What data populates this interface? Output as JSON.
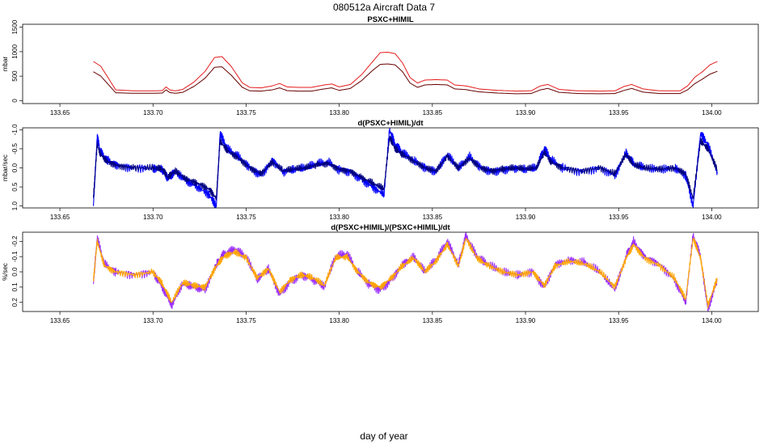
{
  "figure": {
    "title": "080512a   Aircraft Data 7",
    "xlabel": "day of year"
  },
  "chart_data": [
    {
      "type": "line",
      "title": "PSXC+HIMIL",
      "ylabel": "mbar",
      "xlim": [
        133.63,
        134.025
      ],
      "ylim": [
        -60,
        1560
      ],
      "x_ticks": [
        133.65,
        133.7,
        133.75,
        133.8,
        133.85,
        133.9,
        133.95,
        134.0
      ],
      "x_tick_labels": [
        "133.65",
        "133.70",
        "133.75",
        "133.80",
        "133.85",
        "133.90",
        "133.95",
        "134.00"
      ],
      "y_ticks": [
        0,
        500,
        1000,
        1500
      ],
      "y_tick_labels": [
        "0",
        "500",
        "1000",
        "1500"
      ],
      "series": [
        {
          "color": "#e41a1c",
          "x": [
            133.668,
            133.672,
            133.68,
            133.69,
            133.7,
            133.705,
            133.707,
            133.709,
            133.712,
            133.716,
            133.722,
            133.728,
            133.733,
            133.737,
            133.742,
            133.748,
            133.752,
            133.758,
            133.764,
            133.768,
            133.772,
            133.778,
            133.785,
            133.792,
            133.796,
            133.8,
            133.806,
            133.812,
            133.818,
            133.822,
            133.826,
            133.83,
            133.834,
            133.838,
            133.842,
            133.846,
            133.852,
            133.858,
            133.862,
            133.868,
            133.875,
            133.885,
            133.895,
            133.903,
            133.908,
            133.912,
            133.918,
            133.928,
            133.94,
            133.948,
            133.953,
            133.957,
            133.963,
            133.972,
            133.983,
            133.987,
            133.991,
            133.995,
            133.999,
            134.003
          ],
          "y": [
            800,
            700,
            220,
            200,
            200,
            205,
            280,
            220,
            200,
            230,
            380,
            600,
            880,
            900,
            700,
            360,
            270,
            260,
            300,
            350,
            280,
            270,
            270,
            320,
            340,
            280,
            330,
            530,
            800,
            980,
            990,
            960,
            770,
            470,
            360,
            420,
            430,
            420,
            320,
            300,
            240,
            210,
            195,
            200,
            300,
            330,
            230,
            200,
            195,
            200,
            290,
            330,
            240,
            200,
            200,
            300,
            480,
            590,
            730,
            800
          ]
        },
        {
          "color": "#660000",
          "x": [
            133.668,
            133.672,
            133.68,
            133.69,
            133.7,
            133.705,
            133.707,
            133.709,
            133.712,
            133.716,
            133.722,
            133.728,
            133.733,
            133.737,
            133.742,
            133.748,
            133.752,
            133.758,
            133.764,
            133.768,
            133.772,
            133.778,
            133.785,
            133.792,
            133.796,
            133.8,
            133.806,
            133.812,
            133.818,
            133.822,
            133.826,
            133.83,
            133.834,
            133.838,
            133.842,
            133.846,
            133.852,
            133.858,
            133.862,
            133.868,
            133.875,
            133.885,
            133.895,
            133.903,
            133.908,
            133.912,
            133.918,
            133.928,
            133.94,
            133.948,
            133.953,
            133.957,
            133.963,
            133.972,
            133.983,
            133.987,
            133.991,
            133.995,
            133.999,
            134.003
          ],
          "y": [
            590,
            500,
            160,
            150,
            150,
            155,
            220,
            165,
            150,
            170,
            290,
            460,
            680,
            690,
            520,
            270,
            200,
            195,
            220,
            260,
            205,
            195,
            195,
            240,
            260,
            210,
            250,
            410,
            620,
            740,
            750,
            730,
            590,
            360,
            270,
            320,
            330,
            320,
            240,
            225,
            180,
            155,
            140,
            145,
            220,
            250,
            170,
            145,
            140,
            145,
            210,
            250,
            175,
            145,
            145,
            220,
            350,
            440,
            540,
            600
          ]
        }
      ]
    },
    {
      "type": "line",
      "title": "d(PSXC+HIMIL)/dt",
      "ylabel": "mbar/sec",
      "xlim": [
        133.63,
        134.025
      ],
      "ylim": [
        1.05,
        -1.05
      ],
      "y_axis_inverted": true,
      "x_ticks": [
        133.65,
        133.7,
        133.75,
        133.8,
        133.85,
        133.9,
        133.95,
        134.0
      ],
      "x_tick_labels": [
        "133.65",
        "133.70",
        "133.75",
        "133.80",
        "133.85",
        "133.90",
        "133.95",
        "134.00"
      ],
      "y_ticks": [
        -1.0,
        -0.5,
        0.0,
        0.5,
        1.0
      ],
      "y_tick_labels": [
        "-1.0",
        "-0.5",
        "0.0",
        "0.5",
        "1.0"
      ],
      "series": [
        {
          "color": "#0000ff",
          "x": [
            133.668,
            133.67,
            133.672,
            133.676,
            133.682,
            133.69,
            133.7,
            133.705,
            133.708,
            133.712,
            133.718,
            133.724,
            133.73,
            133.734,
            133.736,
            133.74,
            133.746,
            133.752,
            133.758,
            133.764,
            133.77,
            133.776,
            133.782,
            133.788,
            133.794,
            133.8,
            133.806,
            133.812,
            133.818,
            133.824,
            133.827,
            133.83,
            133.834,
            133.84,
            133.846,
            133.852,
            133.858,
            133.864,
            133.87,
            133.876,
            133.882,
            133.888,
            133.894,
            133.9,
            133.906,
            133.91,
            133.914,
            133.92,
            133.93,
            133.94,
            133.948,
            133.954,
            133.958,
            133.964,
            133.972,
            133.98,
            133.986,
            133.99,
            133.994,
            133.998,
            134.003
          ],
          "y": [
            1.0,
            -0.8,
            -0.4,
            -0.2,
            -0.05,
            0.0,
            0.0,
            0.05,
            0.3,
            0.1,
            0.35,
            0.5,
            0.7,
            1.0,
            -0.9,
            -0.5,
            -0.3,
            0.0,
            0.2,
            -0.2,
            0.1,
            0.05,
            0.0,
            -0.1,
            -0.15,
            0.05,
            0.1,
            0.3,
            0.5,
            0.7,
            -1.0,
            -0.6,
            -0.4,
            -0.2,
            0.0,
            0.1,
            -0.35,
            0.0,
            -0.3,
            0.0,
            0.1,
            0.05,
            0.0,
            0.05,
            0.0,
            -0.5,
            -0.2,
            0.0,
            0.1,
            0.0,
            0.2,
            -0.4,
            -0.1,
            0.0,
            0.05,
            0.0,
            0.2,
            1.0,
            -0.9,
            -0.6,
            0.1
          ]
        },
        {
          "color": "#000080",
          "x": [
            133.668,
            133.67,
            133.672,
            133.676,
            133.682,
            133.69,
            133.7,
            133.705,
            133.708,
            133.712,
            133.718,
            133.724,
            133.73,
            133.734,
            133.736,
            133.74,
            133.746,
            133.752,
            133.758,
            133.764,
            133.77,
            133.776,
            133.782,
            133.788,
            133.794,
            133.8,
            133.806,
            133.812,
            133.818,
            133.824,
            133.827,
            133.83,
            133.834,
            133.84,
            133.846,
            133.852,
            133.858,
            133.864,
            133.87,
            133.876,
            133.882,
            133.888,
            133.894,
            133.9,
            133.906,
            133.91,
            133.914,
            133.92,
            133.93,
            133.94,
            133.948,
            133.954,
            133.958,
            133.964,
            133.972,
            133.98,
            133.986,
            133.99,
            133.994,
            133.998,
            134.003
          ],
          "y": [
            0.8,
            -0.6,
            -0.35,
            -0.15,
            -0.05,
            0.0,
            0.0,
            0.03,
            0.25,
            0.08,
            0.3,
            0.4,
            0.55,
            0.8,
            -0.7,
            -0.45,
            -0.25,
            0.0,
            0.15,
            -0.15,
            0.08,
            0.03,
            0.0,
            -0.08,
            -0.12,
            0.03,
            0.08,
            0.25,
            0.4,
            0.55,
            -0.8,
            -0.5,
            -0.35,
            -0.18,
            0.0,
            0.08,
            -0.3,
            0.0,
            -0.25,
            0.0,
            0.08,
            0.03,
            0.0,
            0.03,
            0.0,
            -0.4,
            -0.15,
            0.0,
            0.08,
            0.0,
            0.15,
            -0.35,
            -0.08,
            0.0,
            0.03,
            0.0,
            0.15,
            0.8,
            -0.7,
            -0.5,
            0.05
          ]
        }
      ]
    },
    {
      "type": "line",
      "title": "d(PSXC+HIMIL)/(PSXC+HIMIL)/dt",
      "ylabel": "%/sec",
      "xlim": [
        133.63,
        134.025
      ],
      "ylim": [
        0.26,
        -0.26
      ],
      "y_axis_inverted": true,
      "x_ticks": [
        133.65,
        133.7,
        133.75,
        133.8,
        133.85,
        133.9,
        133.95,
        134.0
      ],
      "x_tick_labels": [
        "133.65",
        "133.70",
        "133.75",
        "133.80",
        "133.85",
        "133.90",
        "133.95",
        "134.00"
      ],
      "y_ticks": [
        -0.2,
        -0.1,
        0.0,
        0.1,
        0.2
      ],
      "y_tick_labels": [
        "-0.2",
        "-0.1",
        "0.0",
        "0.1",
        "0.2"
      ],
      "series": [
        {
          "color": "#9b30ff",
          "x": [
            133.668,
            133.67,
            133.674,
            133.68,
            133.69,
            133.7,
            133.705,
            133.71,
            133.716,
            133.722,
            133.728,
            133.734,
            133.738,
            133.744,
            133.75,
            133.756,
            133.762,
            133.768,
            133.774,
            133.78,
            133.786,
            133.792,
            133.798,
            133.804,
            133.81,
            133.816,
            133.822,
            133.828,
            133.834,
            133.84,
            133.846,
            133.852,
            133.858,
            133.864,
            133.868,
            133.874,
            133.88,
            133.888,
            133.896,
            133.904,
            133.91,
            133.916,
            133.924,
            133.932,
            133.94,
            133.948,
            133.954,
            133.958,
            133.964,
            133.972,
            133.98,
            133.986,
            133.99,
            133.994,
            133.998,
            134.003
          ],
          "y": [
            0.08,
            -0.22,
            -0.05,
            0.0,
            0.02,
            0.0,
            0.1,
            0.22,
            0.08,
            0.1,
            0.12,
            -0.05,
            -0.12,
            -0.15,
            -0.1,
            0.05,
            -0.02,
            0.15,
            0.06,
            0.02,
            0.05,
            0.1,
            -0.1,
            -0.12,
            0.0,
            0.08,
            0.12,
            0.05,
            -0.05,
            -0.1,
            0.0,
            -0.08,
            -0.2,
            -0.05,
            -0.24,
            -0.1,
            -0.05,
            0.0,
            0.02,
            0.0,
            0.1,
            -0.05,
            -0.08,
            -0.06,
            0.0,
            0.12,
            -0.1,
            -0.2,
            -0.1,
            -0.05,
            0.05,
            0.2,
            -0.24,
            -0.1,
            0.25,
            0.05
          ]
        },
        {
          "color": "#ffa500",
          "x": [
            133.668,
            133.67,
            133.674,
            133.68,
            133.69,
            133.7,
            133.705,
            133.71,
            133.716,
            133.722,
            133.728,
            133.734,
            133.738,
            133.744,
            133.75,
            133.756,
            133.762,
            133.768,
            133.774,
            133.78,
            133.786,
            133.792,
            133.798,
            133.804,
            133.81,
            133.816,
            133.822,
            133.828,
            133.834,
            133.84,
            133.846,
            133.852,
            133.858,
            133.864,
            133.868,
            133.874,
            133.88,
            133.888,
            133.896,
            133.904,
            133.91,
            133.916,
            133.924,
            133.932,
            133.94,
            133.948,
            133.954,
            133.958,
            133.964,
            133.972,
            133.98,
            133.986,
            133.99,
            133.994,
            133.998,
            134.003
          ],
          "y": [
            0.06,
            -0.2,
            -0.04,
            0.0,
            0.02,
            0.0,
            0.08,
            0.2,
            0.07,
            0.09,
            0.1,
            -0.04,
            -0.1,
            -0.13,
            -0.09,
            0.04,
            -0.02,
            0.13,
            0.05,
            0.02,
            0.04,
            0.09,
            -0.09,
            -0.1,
            0.0,
            0.07,
            0.1,
            0.04,
            -0.04,
            -0.09,
            0.0,
            -0.07,
            -0.18,
            -0.04,
            -0.22,
            -0.09,
            -0.04,
            0.0,
            0.02,
            0.0,
            0.09,
            -0.04,
            -0.07,
            -0.05,
            0.0,
            0.1,
            -0.09,
            -0.18,
            -0.09,
            -0.04,
            0.04,
            0.18,
            -0.22,
            -0.09,
            0.22,
            0.04
          ]
        }
      ]
    }
  ]
}
